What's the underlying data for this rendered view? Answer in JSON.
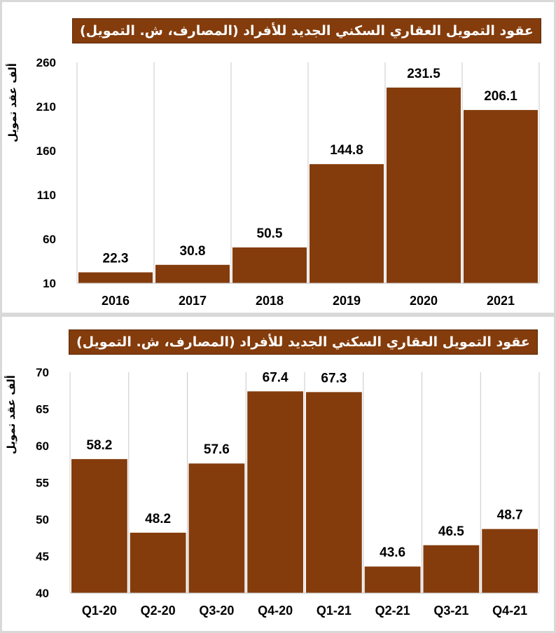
{
  "chart_data": [
    {
      "type": "bar",
      "title": "عقود التمويل العقاري السكني الجديد للأفراد (المصارف، ش. التمويل)",
      "ylabel": "ألف عقد تمويل",
      "categories": [
        "2016",
        "2017",
        "2018",
        "2019",
        "2020",
        "2021"
      ],
      "values": [
        22.3,
        30.8,
        50.5,
        144.8,
        231.5,
        206.1
      ],
      "value_labels": [
        "22.3",
        "30.8",
        "50.5",
        "144.8",
        "231.5",
        "206.1"
      ],
      "ylim": [
        10,
        260
      ],
      "yticks": [
        10,
        60,
        110,
        160,
        210,
        260
      ],
      "grid": "vertical",
      "bar_color": "#843c0c"
    },
    {
      "type": "bar",
      "title": "عقود التمويل العقاري السكني الجديد للأفراد (المصارف، ش. التمويل)",
      "ylabel": "ألف عقد تمويل",
      "categories": [
        "Q1-20",
        "Q2-20",
        "Q3-20",
        "Q4-20",
        "Q1-21",
        "Q2-21",
        "Q3-21",
        "Q4-21"
      ],
      "values": [
        58.2,
        48.2,
        57.6,
        67.4,
        67.3,
        43.6,
        46.5,
        48.7
      ],
      "value_labels": [
        "58.2",
        "48.2",
        "57.6",
        "67.4",
        "67.3",
        "43.6",
        "46.5",
        "48.7"
      ],
      "ylim": [
        40,
        70
      ],
      "yticks": [
        40,
        45,
        50,
        55,
        60,
        65,
        70
      ],
      "grid": "vertical",
      "bar_color": "#843c0c"
    }
  ]
}
